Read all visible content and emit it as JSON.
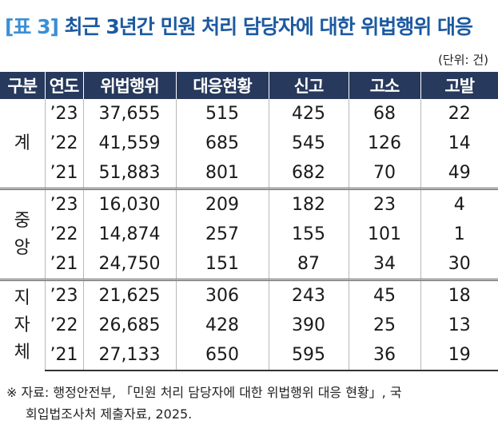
{
  "title": {
    "bracket": "[표 3]",
    "text": "최근 3년간 민원 처리 담당자에 대한 위법행위 대응"
  },
  "unit": "(단위: 건)",
  "table": {
    "headers": [
      "구분",
      "연도",
      "위법행위",
      "대응현황",
      "신고",
      "고소",
      "고발"
    ],
    "groups": [
      {
        "label": "계",
        "rows": [
          [
            "’23",
            "37,655",
            "515",
            "425",
            "68",
            "22"
          ],
          [
            "’22",
            "41,559",
            "685",
            "545",
            "126",
            "14"
          ],
          [
            "’21",
            "51,883",
            "801",
            "682",
            "70",
            "49"
          ]
        ]
      },
      {
        "label": "중\n앙",
        "rows": [
          [
            "’23",
            "16,030",
            "209",
            "182",
            "23",
            "4"
          ],
          [
            "’22",
            "14,874",
            "257",
            "155",
            "101",
            "1"
          ],
          [
            "’21",
            "24,750",
            "151",
            "87",
            "34",
            "30"
          ]
        ]
      },
      {
        "label": "지\n자\n체",
        "rows": [
          [
            "’23",
            "21,625",
            "306",
            "243",
            "45",
            "18"
          ],
          [
            "’22",
            "26,685",
            "428",
            "390",
            "25",
            "13"
          ],
          [
            "’21",
            "27,133",
            "650",
            "595",
            "36",
            "19"
          ]
        ]
      }
    ]
  },
  "note": {
    "line1": "※ 자료:  행정안전부, 「민원 처리 담당자에 대한 위법행위 대응 현황」, 국",
    "line2": "회입법조사처 제출자료, 2025."
  }
}
